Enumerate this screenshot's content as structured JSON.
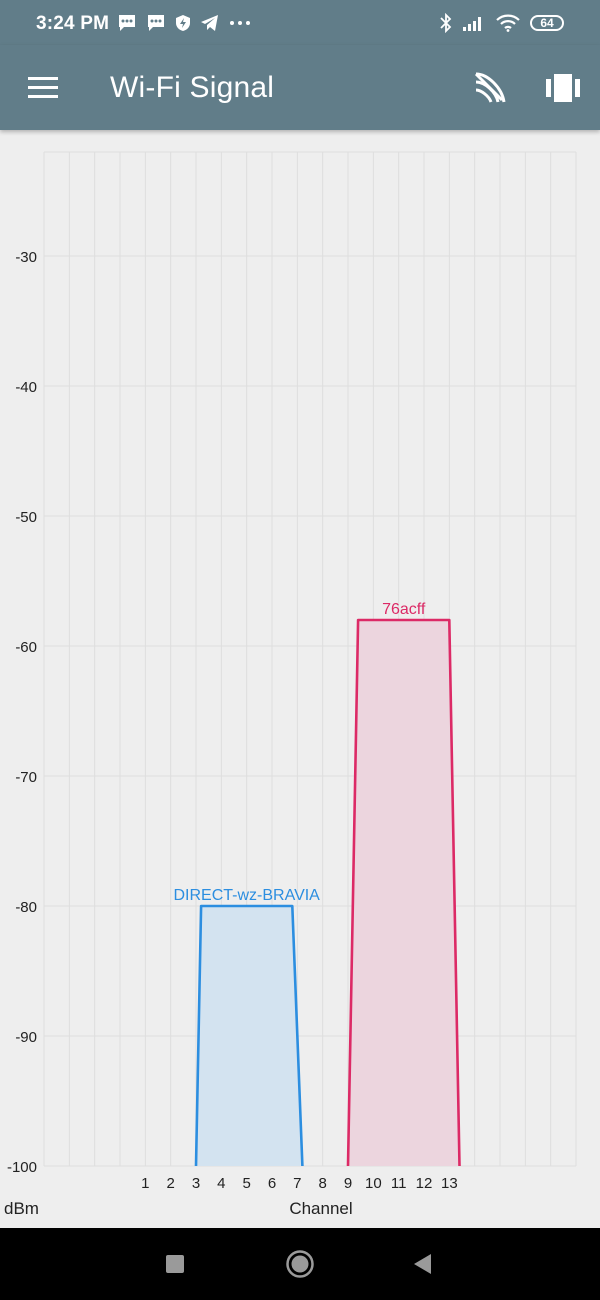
{
  "status_bar": {
    "time": "3:24 PM",
    "battery": "64",
    "notification_icons": [
      "message-icon",
      "message-icon",
      "shield-icon",
      "telegram-icon",
      "more-dots-icon"
    ],
    "system_icons": [
      "bluetooth-icon",
      "cellular-signal-icon",
      "wifi-icon",
      "battery-icon"
    ]
  },
  "app_bar": {
    "title": "Wi-Fi Signal",
    "icons": [
      "menu-icon",
      "wifi-scan-icon",
      "view-toggle-icon"
    ],
    "color": "#617d89"
  },
  "chart_data": {
    "type": "area",
    "ylabel": "dBm",
    "xlabel": "Channel",
    "ylim": [
      -100,
      -22
    ],
    "y_ticks": [
      -30,
      -40,
      -50,
      -60,
      -70,
      -80,
      -90,
      -100
    ],
    "x_ticks": [
      "1",
      "2",
      "3",
      "4",
      "5",
      "6",
      "7",
      "8",
      "9",
      "10",
      "11",
      "12",
      "13"
    ],
    "xlim": [
      -3,
      18
    ],
    "grid": true,
    "series": [
      {
        "name": "DIRECT-wz-BRAVIA",
        "color": "#2c8ee0",
        "fill": "#d3e3f0",
        "points": [
          [
            3,
            -100
          ],
          [
            3.2,
            -80
          ],
          [
            6.8,
            -80
          ],
          [
            7.2,
            -100
          ]
        ]
      },
      {
        "name": "76acff",
        "color": "#dc2a66",
        "fill": "#ecd5de",
        "points": [
          [
            9,
            -100
          ],
          [
            9.4,
            -58
          ],
          [
            13,
            -58
          ],
          [
            13.4,
            -100
          ]
        ]
      }
    ]
  },
  "nav_bar": {
    "buttons": [
      "recents-square-icon",
      "home-circle-icon",
      "back-triangle-icon"
    ]
  }
}
